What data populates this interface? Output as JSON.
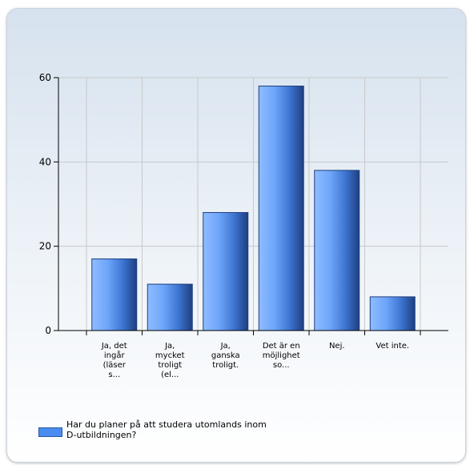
{
  "colors": {
    "bar_light": "#8fbcff",
    "bar_mid": "#4a8cf0",
    "bar_dark": "#1f3f80",
    "grid": "#c8c8c8",
    "axis": "#000000"
  },
  "chart_data": {
    "type": "bar",
    "title": "",
    "xlabel": "",
    "ylabel": "",
    "ylim": [
      0,
      60
    ],
    "yticks": [
      0,
      20,
      40,
      60
    ],
    "grid": true,
    "legend_position": "bottom-left",
    "categories": [
      "Ja, det ingår (läser s...",
      "Ja, mycket troligt (el...",
      "Ja, ganska troligt.",
      "Det är en möjlighet so...",
      "Nej.",
      "Vet inte."
    ],
    "category_lines": [
      [
        "Ja, det",
        "ingår",
        "(läser",
        "s..."
      ],
      [
        "Ja,",
        "mycket",
        "troligt",
        "(el..."
      ],
      [
        "Ja,",
        "ganska",
        "troligt."
      ],
      [
        "Det är en",
        "möjlighet",
        "so..."
      ],
      [
        "Nej."
      ],
      [
        "Vet inte."
      ]
    ],
    "series": [
      {
        "name": "Har du planer på att studera utomlands inom D-utbildningen?",
        "values": [
          17,
          11,
          28,
          58,
          38,
          8
        ]
      }
    ]
  },
  "legend": {
    "label": "Har du planer på att studera utomlands inom D-utbildningen?"
  }
}
